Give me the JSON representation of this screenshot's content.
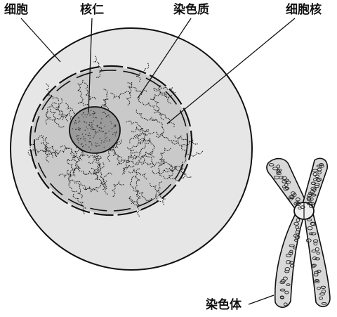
{
  "labels": {
    "cell": "细胞",
    "nucleolus": "核仁",
    "chromatin": "染色质",
    "nucleus": "细胞核",
    "chromosome": "染色体"
  },
  "colors": {
    "outline": "#111111",
    "cytoplasm": "#e6e6e6",
    "nucleoplasm": "#c9c9c9",
    "nucleolus": "#9a9a9a",
    "background": "#ffffff"
  }
}
